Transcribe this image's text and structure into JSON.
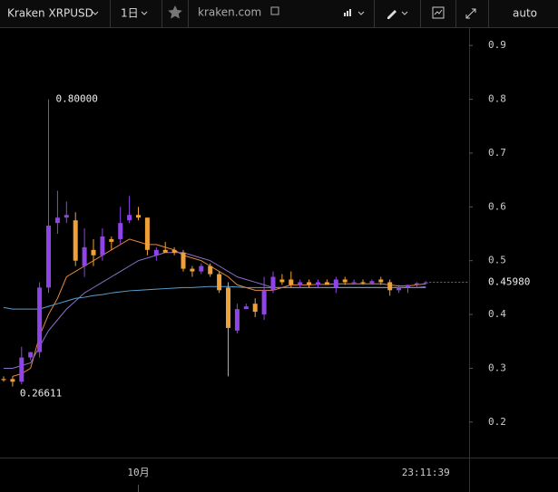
{
  "toolbar": {
    "symbol": "Kraken XRPUSD",
    "interval": "1日",
    "site": "kraken.com",
    "scale_mode": "auto"
  },
  "chart_data": {
    "type": "candlestick",
    "categories": [
      null,
      null,
      null,
      null,
      null,
      null,
      null,
      null,
      null,
      null,
      null,
      null,
      null,
      null,
      null,
      "10月",
      null,
      null,
      null,
      null,
      null,
      null,
      null,
      null,
      null,
      null,
      null,
      null,
      null,
      null,
      null,
      null,
      null,
      null,
      null,
      null,
      null,
      null,
      null,
      null,
      null,
      null,
      null,
      null,
      null,
      null,
      null,
      null
    ],
    "open": [
      0.28,
      0.28,
      0.275,
      0.32,
      0.33,
      0.45,
      0.57,
      0.58,
      0.575,
      0.49,
      0.52,
      0.51,
      0.54,
      0.54,
      0.575,
      0.585,
      0.58,
      0.51,
      0.52,
      0.52,
      0.515,
      0.485,
      0.48,
      0.49,
      0.475,
      0.45,
      0.37,
      0.41,
      0.42,
      0.4,
      0.445,
      0.465,
      0.465,
      0.455,
      0.46,
      0.455,
      0.46,
      0.45,
      0.465,
      0.46,
      0.46,
      0.458,
      0.465,
      0.46,
      0.445,
      0.45,
      0.455,
      0.458
    ],
    "high": [
      0.285,
      0.285,
      0.34,
      0.33,
      0.46,
      0.8,
      0.63,
      0.61,
      0.59,
      0.56,
      0.54,
      0.56,
      0.545,
      0.6,
      0.62,
      0.6,
      0.58,
      0.525,
      0.535,
      0.525,
      0.52,
      0.49,
      0.495,
      0.495,
      0.48,
      0.46,
      0.42,
      0.42,
      0.43,
      0.47,
      0.48,
      0.475,
      0.48,
      0.465,
      0.465,
      0.465,
      0.465,
      0.47,
      0.47,
      0.465,
      0.465,
      0.465,
      0.47,
      0.465,
      0.455,
      0.455,
      0.46,
      0.462
    ],
    "low": [
      0.275,
      0.26611,
      0.27,
      0.315,
      0.32,
      0.44,
      0.55,
      0.57,
      0.49,
      0.47,
      0.49,
      0.5,
      0.52,
      0.53,
      0.57,
      0.575,
      0.51,
      0.5,
      0.515,
      0.51,
      0.48,
      0.47,
      0.475,
      0.47,
      0.44,
      0.285,
      0.365,
      0.41,
      0.395,
      0.39,
      0.44,
      0.455,
      0.45,
      0.45,
      0.45,
      0.45,
      0.455,
      0.44,
      0.455,
      0.455,
      0.455,
      0.455,
      0.455,
      0.435,
      0.44,
      0.44,
      0.45,
      0.456
    ],
    "close": [
      0.278,
      0.275,
      0.32,
      0.33,
      0.45,
      0.565,
      0.58,
      0.585,
      0.5,
      0.525,
      0.51,
      0.545,
      0.535,
      0.57,
      0.585,
      0.58,
      0.52,
      0.52,
      0.515,
      0.515,
      0.485,
      0.48,
      0.49,
      0.475,
      0.445,
      0.375,
      0.41,
      0.415,
      0.405,
      0.445,
      0.47,
      0.46,
      0.455,
      0.46,
      0.455,
      0.46,
      0.455,
      0.465,
      0.46,
      0.46,
      0.458,
      0.462,
      0.46,
      0.445,
      0.45,
      0.455,
      0.458,
      0.4598
    ],
    "up_color": "#8e44e8",
    "down_color": "#f0a038",
    "overlays": [
      {
        "color": "#e8873a",
        "values": [
          null,
          0.285,
          0.29,
          0.3,
          0.36,
          0.4,
          0.43,
          0.47,
          0.48,
          0.49,
          0.5,
          0.51,
          0.52,
          0.53,
          0.54,
          0.535,
          0.53,
          0.53,
          0.525,
          0.52,
          0.51,
          0.505,
          0.5,
          0.49,
          0.48,
          0.47,
          0.455,
          0.45,
          0.445,
          0.445,
          0.445,
          0.45,
          0.455,
          0.455,
          0.455,
          0.456,
          0.456,
          0.457,
          0.457,
          0.457,
          0.457,
          0.457,
          0.457,
          0.455,
          0.453,
          0.453,
          0.455,
          0.457
        ]
      },
      {
        "color": "#8a70c8",
        "values": [
          0.3,
          0.3,
          0.305,
          0.31,
          0.34,
          0.37,
          0.39,
          0.41,
          0.425,
          0.44,
          0.45,
          0.46,
          0.47,
          0.48,
          0.49,
          0.5,
          0.505,
          0.51,
          0.515,
          0.515,
          0.515,
          0.51,
          0.505,
          0.5,
          0.49,
          0.48,
          0.47,
          0.465,
          0.46,
          0.455,
          0.45,
          0.45,
          0.45,
          0.45,
          0.45,
          0.45,
          0.45,
          0.45,
          0.45,
          0.45,
          0.45,
          0.45,
          0.45,
          0.45,
          0.45,
          0.45,
          0.45,
          0.452
        ]
      },
      {
        "color": "#5aa0d0",
        "values": [
          0.413,
          0.41,
          0.41,
          0.41,
          0.41,
          0.415,
          0.42,
          0.425,
          0.43,
          0.432,
          0.435,
          0.437,
          0.44,
          0.442,
          0.444,
          0.445,
          0.446,
          0.447,
          0.448,
          0.449,
          0.45,
          0.45,
          0.451,
          0.452,
          0.452,
          0.452,
          0.451,
          0.45,
          0.45,
          0.45,
          0.45,
          0.45,
          0.45,
          0.45,
          0.45,
          0.45,
          0.45,
          0.45,
          0.45,
          0.45,
          0.45,
          0.45,
          0.45,
          0.45,
          0.45,
          0.45,
          0.45,
          0.45
        ]
      }
    ],
    "ylim": [
      0.134,
      0.934
    ],
    "yticks": [
      0.2,
      0.3,
      0.4,
      0.5,
      0.6,
      0.7,
      0.8,
      0.9
    ],
    "annotations": [
      {
        "value": 0.8,
        "label": "0.80000"
      },
      {
        "value": 0.26611,
        "label": "0.26611"
      }
    ],
    "last_price": {
      "value": 0.4598,
      "label": "0.45980"
    },
    "time_label": "23:11:39"
  }
}
